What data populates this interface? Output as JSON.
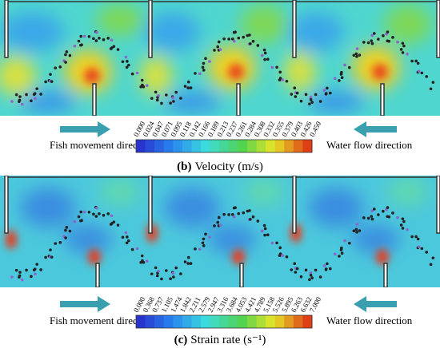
{
  "panels": [
    {
      "caption": {
        "tag": "(b)",
        "text": "Velocity (m/s)"
      },
      "left_arrow_label": "Fish movement  direction",
      "right_arrow_label": "Water flow  direction",
      "colorbar": {
        "ticks": [
          "0.000",
          "0.024",
          "0.047",
          "0.071",
          "0.095",
          "0.118",
          "0.142",
          "0.166",
          "0.189",
          "0.213",
          "0.237",
          "0.261",
          "0.284",
          "0.308",
          "0.332",
          "0.355",
          "0.379",
          "0.403",
          "0.426",
          "0.450"
        ]
      }
    },
    {
      "caption": {
        "tag": "(c)",
        "text": "Strain rate (s⁻¹)"
      },
      "left_arrow_label": "Fish movement  direction",
      "right_arrow_label": "Water flow  direction",
      "colorbar": {
        "ticks": [
          "0.000",
          "0.368",
          "0.737",
          "1.105",
          "1.474",
          "1.842",
          "2.211",
          "2.579",
          "2.947",
          "3.316",
          "3.684",
          "4.053",
          "4.421",
          "4.789",
          "5.158",
          "5.526",
          "5.895",
          "6.263",
          "6.632",
          "7.000"
        ]
      }
    }
  ]
}
